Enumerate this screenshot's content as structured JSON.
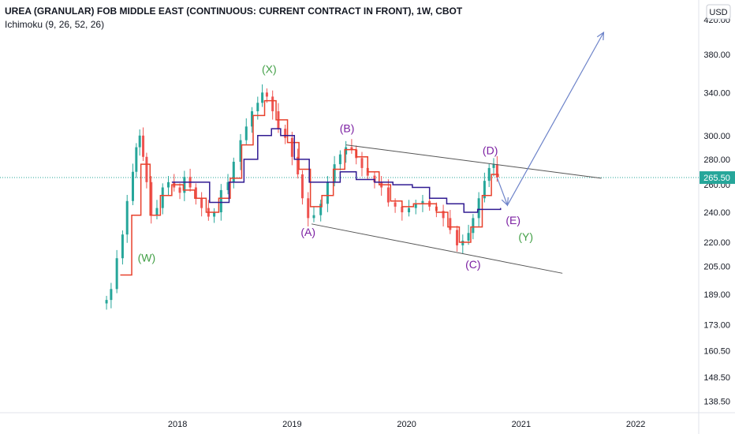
{
  "header": {
    "title": "UREA (GRANULAR) FOB MIDDLE EAST (CONTINUOUS: CURRENT CONTRACT IN FRONT), 1W, CBOT",
    "indicator": "Ichimoku (9, 26, 52, 26)"
  },
  "currency_button": {
    "label": "USD"
  },
  "colors": {
    "up": "#26a69a",
    "down": "#ef5350",
    "conversion_line": "#e8412c",
    "base_line": "#311b92",
    "price_line": "#26a69a",
    "green_label": "#43a047",
    "purple_label": "#7b1fa2",
    "arrow": "#6d83c9",
    "channel": "#555555"
  },
  "chart_data": {
    "type": "candlestick",
    "y_scale": "log",
    "ylim": [
      134,
      445
    ],
    "xlim": [
      2016.45,
      2022.55
    ],
    "x_ticks": [
      "2018",
      "2019",
      "2020",
      "2021",
      "2022"
    ],
    "y_ticks": [
      "420.00",
      "380.00",
      "340.00",
      "300.00",
      "280.00",
      "260.00",
      "240.00",
      "220.00",
      "205.00",
      "189.00",
      "173.00",
      "160.50",
      "148.50",
      "138.50"
    ],
    "last_price": {
      "label": "265.50",
      "value": 265.5
    },
    "price_series": [
      [
        2017.38,
        186
      ],
      [
        2017.42,
        192
      ],
      [
        2017.47,
        210
      ],
      [
        2017.52,
        225
      ],
      [
        2017.56,
        248
      ],
      [
        2017.61,
        270
      ],
      [
        2017.64,
        290
      ],
      [
        2017.67,
        300
      ],
      [
        2017.7,
        282
      ],
      [
        2017.73,
        262
      ],
      [
        2017.77,
        238
      ],
      [
        2017.82,
        243
      ],
      [
        2017.87,
        258
      ],
      [
        2017.92,
        262
      ],
      [
        2017.97,
        258
      ],
      [
        2018.02,
        254
      ],
      [
        2018.06,
        266
      ],
      [
        2018.11,
        258
      ],
      [
        2018.16,
        250
      ],
      [
        2018.21,
        243
      ],
      [
        2018.27,
        237
      ],
      [
        2018.32,
        240
      ],
      [
        2018.38,
        256
      ],
      [
        2018.44,
        262
      ],
      [
        2018.49,
        278
      ],
      [
        2018.55,
        296
      ],
      [
        2018.6,
        308
      ],
      [
        2018.65,
        322
      ],
      [
        2018.7,
        330
      ],
      [
        2018.74,
        340
      ],
      [
        2018.78,
        336
      ],
      [
        2018.83,
        322
      ],
      [
        2018.88,
        306
      ],
      [
        2018.94,
        298
      ],
      [
        2019.0,
        282
      ],
      [
        2019.05,
        268
      ],
      [
        2019.09,
        250
      ],
      [
        2019.14,
        236
      ],
      [
        2019.19,
        238
      ],
      [
        2019.25,
        246
      ],
      [
        2019.31,
        262
      ],
      [
        2019.37,
        276
      ],
      [
        2019.42,
        284
      ],
      [
        2019.47,
        290
      ],
      [
        2019.52,
        288
      ],
      [
        2019.56,
        281
      ],
      [
        2019.61,
        273
      ],
      [
        2019.66,
        267
      ],
      [
        2019.72,
        262
      ],
      [
        2019.78,
        258
      ],
      [
        2019.84,
        247
      ],
      [
        2019.9,
        244
      ],
      [
        2019.96,
        240
      ],
      [
        2020.02,
        243
      ],
      [
        2020.08,
        246
      ],
      [
        2020.14,
        248
      ],
      [
        2020.2,
        244
      ],
      [
        2020.26,
        241
      ],
      [
        2020.32,
        236
      ],
      [
        2020.38,
        228
      ],
      [
        2020.44,
        218
      ],
      [
        2020.49,
        221
      ],
      [
        2020.54,
        226
      ],
      [
        2020.58,
        236
      ],
      [
        2020.63,
        250
      ],
      [
        2020.68,
        263
      ],
      [
        2020.72,
        273
      ],
      [
        2020.76,
        276
      ],
      [
        2020.79,
        265.5
      ]
    ],
    "conversion_line": [
      [
        2017.5,
        200
      ],
      [
        2017.6,
        238
      ],
      [
        2017.68,
        276
      ],
      [
        2017.76,
        238
      ],
      [
        2017.85,
        252
      ],
      [
        2017.95,
        260
      ],
      [
        2018.05,
        256
      ],
      [
        2018.15,
        250
      ],
      [
        2018.25,
        240
      ],
      [
        2018.36,
        250
      ],
      [
        2018.46,
        265
      ],
      [
        2018.56,
        292
      ],
      [
        2018.66,
        318
      ],
      [
        2018.76,
        332
      ],
      [
        2018.86,
        314
      ],
      [
        2018.96,
        294
      ],
      [
        2019.06,
        272
      ],
      [
        2019.16,
        244
      ],
      [
        2019.26,
        252
      ],
      [
        2019.36,
        272
      ],
      [
        2019.46,
        288
      ],
      [
        2019.56,
        282
      ],
      [
        2019.66,
        270
      ],
      [
        2019.76,
        260
      ],
      [
        2019.86,
        248
      ],
      [
        2019.96,
        244
      ],
      [
        2020.06,
        246
      ],
      [
        2020.16,
        246
      ],
      [
        2020.26,
        240
      ],
      [
        2020.36,
        230
      ],
      [
        2020.46,
        220
      ],
      [
        2020.56,
        230
      ],
      [
        2020.66,
        252
      ],
      [
        2020.74,
        268
      ],
      [
        2020.8,
        266
      ]
    ],
    "base_line": [
      [
        2017.95,
        262
      ],
      [
        2018.1,
        262
      ],
      [
        2018.28,
        247
      ],
      [
        2018.45,
        262
      ],
      [
        2018.58,
        280
      ],
      [
        2018.7,
        300
      ],
      [
        2018.82,
        306
      ],
      [
        2018.9,
        300
      ],
      [
        2019.02,
        280
      ],
      [
        2019.15,
        262
      ],
      [
        2019.3,
        262
      ],
      [
        2019.42,
        270
      ],
      [
        2019.56,
        264
      ],
      [
        2019.72,
        262
      ],
      [
        2019.88,
        260
      ],
      [
        2020.05,
        258
      ],
      [
        2020.2,
        250
      ],
      [
        2020.35,
        246
      ],
      [
        2020.5,
        240
      ],
      [
        2020.62,
        242
      ],
      [
        2020.82,
        243
      ]
    ],
    "channel_upper": [
      [
        2019.47,
        292
      ],
      [
        2021.7,
        265
      ]
    ],
    "channel_lower": [
      [
        2019.17,
        232
      ],
      [
        2021.36,
        201
      ]
    ],
    "projection_arrow": [
      [
        2020.79,
        265.5
      ],
      [
        2020.88,
        245
      ],
      [
        2021.72,
        405
      ]
    ],
    "annotations": [
      {
        "text": "(W)",
        "x": 2017.73,
        "y": 208,
        "color": "green"
      },
      {
        "text": "(X)",
        "x": 2018.8,
        "y": 360,
        "color": "green"
      },
      {
        "text": "(A)",
        "x": 2019.14,
        "y": 224,
        "color": "purple"
      },
      {
        "text": "(B)",
        "x": 2019.48,
        "y": 303,
        "color": "purple"
      },
      {
        "text": "(C)",
        "x": 2020.58,
        "y": 204,
        "color": "purple"
      },
      {
        "text": "(D)",
        "x": 2020.73,
        "y": 284,
        "color": "purple"
      },
      {
        "text": "(E)",
        "x": 2020.93,
        "y": 232,
        "color": "purple"
      },
      {
        "text": "(Y)",
        "x": 2021.04,
        "y": 221,
        "color": "green"
      }
    ]
  }
}
